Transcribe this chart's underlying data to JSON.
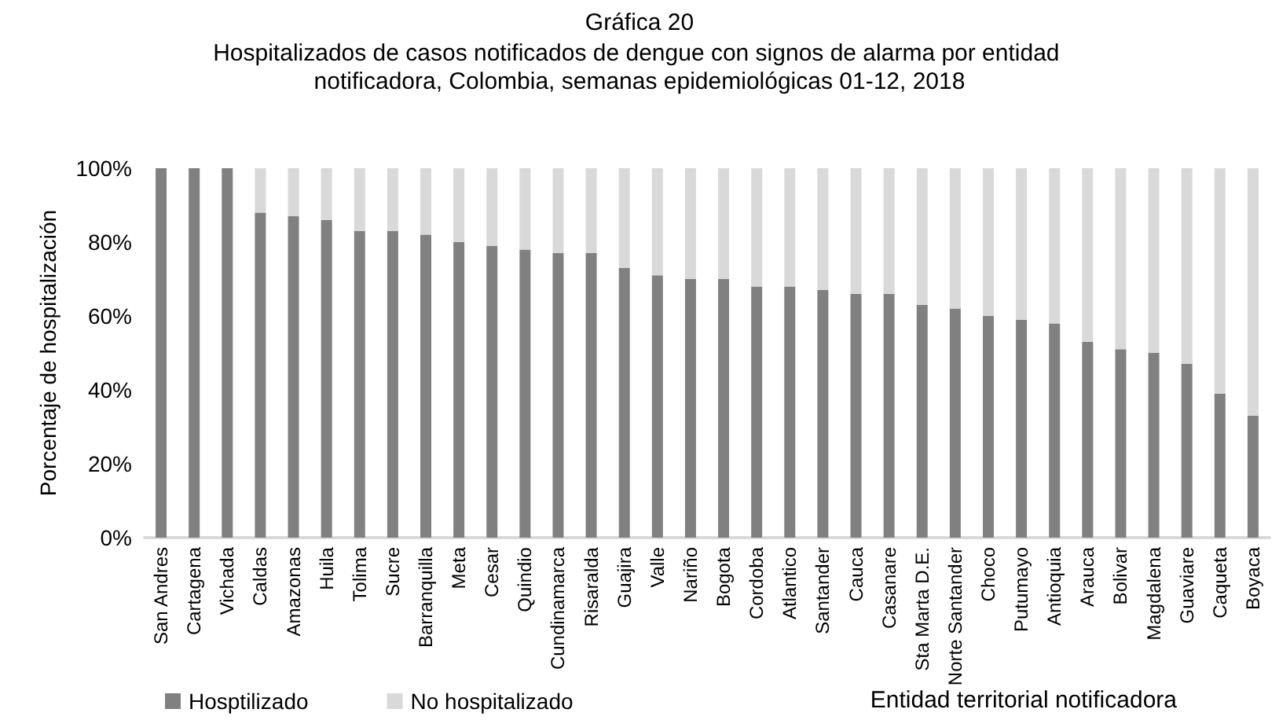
{
  "chart_data": {
    "type": "bar",
    "stacked": true,
    "title": "Gráfica 20",
    "subtitle": "Hospitalizados de casos notificados de dengue con signos de alarma por entidad notificadora, Colombia, semanas epidemiológicas 01-12, 2018",
    "xlabel": "Entidad territorial notificadora",
    "ylabel": "Porcentaje de hospitalización",
    "categories": [
      "San Andres",
      "Cartagena",
      "Vichada",
      "Caldas",
      "Amazonas",
      "Huila",
      "Tolima",
      "Sucre",
      "Barranquilla",
      "Meta",
      "Cesar",
      "Quindio",
      "Cundinamarca",
      "Risaralda",
      "Guajira",
      "Valle",
      "Nariño",
      "Bogota",
      "Cordoba",
      "Atlantico",
      "Santander",
      "Cauca",
      "Casanare",
      "Sta Marta D.E.",
      "Norte Santander",
      "Choco",
      "Putumayo",
      "Antioquia",
      "Arauca",
      "Bolivar",
      "Magdalena",
      "Guaviare",
      "Caqueta",
      "Boyaca"
    ],
    "series": [
      {
        "name": "Hosptilizado",
        "color": "#808080",
        "values": [
          100,
          100,
          100,
          88,
          87,
          86,
          83,
          83,
          82,
          80,
          79,
          78,
          77,
          77,
          73,
          71,
          70,
          70,
          68,
          68,
          67,
          66,
          66,
          63,
          62,
          60,
          59,
          58,
          53,
          51,
          50,
          47,
          39,
          33
        ]
      },
      {
        "name": "No hospitalizado",
        "color": "#d9d9d9",
        "values": [
          0,
          0,
          0,
          12,
          13,
          14,
          17,
          17,
          18,
          20,
          21,
          22,
          23,
          23,
          27,
          29,
          30,
          30,
          32,
          32,
          33,
          34,
          34,
          37,
          38,
          40,
          41,
          42,
          47,
          49,
          50,
          53,
          61,
          67
        ]
      }
    ],
    "ylim": [
      0,
      100
    ],
    "yticks": [
      {
        "value": 0,
        "label": "0%"
      },
      {
        "value": 20,
        "label": "20%"
      },
      {
        "value": 40,
        "label": "40%"
      },
      {
        "value": 60,
        "label": "60%"
      },
      {
        "value": 80,
        "label": "80%"
      },
      {
        "value": 100,
        "label": "100%"
      }
    ],
    "grid": false,
    "legend": "bottom left"
  }
}
